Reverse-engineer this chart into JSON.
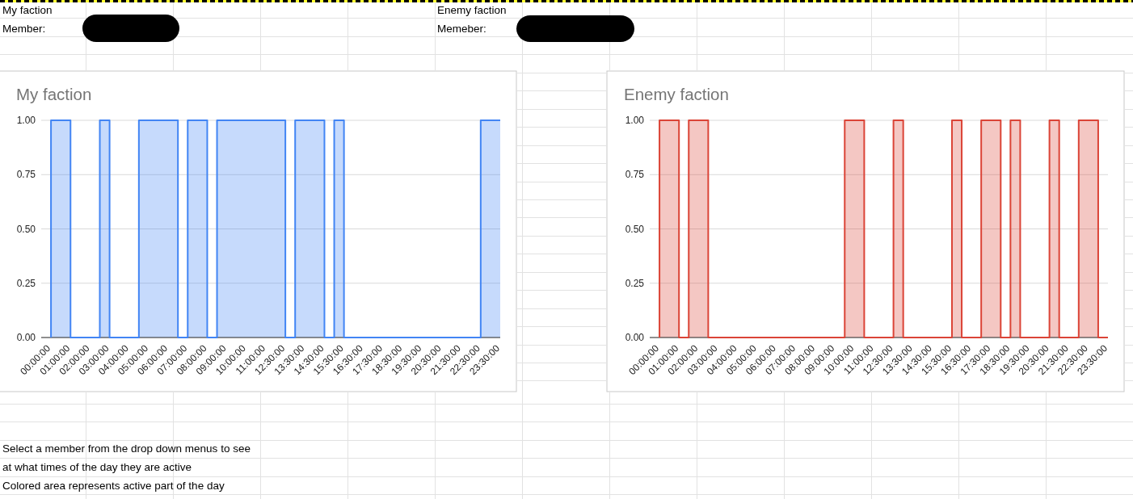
{
  "chart_data": [
    {
      "type": "step",
      "title": "My faction",
      "categories": [
        "00:00:00",
        null,
        "01:00:00",
        null,
        "02:00:00",
        null,
        "03:00:00",
        null,
        "04:00:00",
        null,
        "05:00:00",
        null,
        "06:00:00",
        null,
        "07:00:00",
        null,
        "08:00:00",
        null,
        "09:00:00",
        null,
        "10:00:00",
        null,
        "11:00:00",
        null,
        "12:30:00",
        null,
        "13:30:00",
        null,
        "14:30:00",
        null,
        "15:30:00",
        null,
        "16:30:00",
        null,
        "17:30:00",
        null,
        "18:30:00",
        null,
        "19:30:00",
        null,
        "20:30:00",
        null,
        "21:30:00",
        null,
        "22:30:00",
        null,
        "23:30:00"
      ],
      "values": [
        0,
        1,
        1,
        0,
        0,
        0,
        1,
        0,
        0,
        0,
        1,
        1,
        1,
        1,
        0,
        1,
        1,
        0,
        1,
        1,
        1,
        1,
        1,
        1,
        1,
        0,
        1,
        1,
        1,
        0,
        1,
        0,
        0,
        0,
        0,
        0,
        0,
        0,
        0,
        0,
        0,
        0,
        0,
        0,
        0,
        1,
        1
      ],
      "color": "#4285f4",
      "ylim": [
        0,
        1
      ],
      "yticks": [
        {
          "value": 0,
          "label": "0.00"
        },
        {
          "value": 0.25,
          "label": "0.25"
        },
        {
          "value": 0.5,
          "label": "0.50"
        },
        {
          "value": 0.75,
          "label": "0.75"
        },
        {
          "value": 1,
          "label": "1.00"
        }
      ],
      "grid": "y",
      "annotations": [
        "My faction",
        "Member:",
        "Select a member from the drop down menus to see",
        "at what times of the day they are active",
        "Colored area represents active part of the day"
      ]
    },
    {
      "type": "step",
      "title": "Enemy faction",
      "categories": [
        "00:00:00",
        null,
        "01:00:00",
        null,
        "02:00:00",
        null,
        "03:00:00",
        null,
        "04:00:00",
        null,
        "05:00:00",
        null,
        "06:00:00",
        null,
        "07:00:00",
        null,
        "08:00:00",
        null,
        "09:00:00",
        null,
        "10:00:00",
        null,
        "11:00:00",
        null,
        "12:30:00",
        null,
        "13:30:00",
        null,
        "14:30:00",
        null,
        "15:30:00",
        null,
        "16:30:00",
        null,
        "17:30:00",
        null,
        "18:30:00",
        null,
        "19:30:00",
        null,
        "20:30:00",
        null,
        "21:30:00",
        null,
        "22:30:00",
        null,
        "23:30:00"
      ],
      "values": [
        0,
        1,
        1,
        0,
        1,
        1,
        0,
        0,
        0,
        0,
        0,
        0,
        0,
        0,
        0,
        0,
        0,
        0,
        0,
        0,
        1,
        1,
        0,
        0,
        0,
        1,
        0,
        0,
        0,
        0,
        0,
        1,
        0,
        0,
        1,
        1,
        0,
        1,
        0,
        0,
        0,
        1,
        0,
        0,
        1,
        1,
        0
      ],
      "color": "#db4437",
      "ylim": [
        0,
        1
      ],
      "yticks": [
        {
          "value": 0,
          "label": "0.00"
        },
        {
          "value": 0.25,
          "label": "0.25"
        },
        {
          "value": 0.5,
          "label": "0.50"
        },
        {
          "value": 0.75,
          "label": "0.75"
        },
        {
          "value": 1,
          "label": "1.00"
        }
      ],
      "grid": "y",
      "annotations": [
        "Enemy faction",
        "Memeber:"
      ]
    }
  ]
}
